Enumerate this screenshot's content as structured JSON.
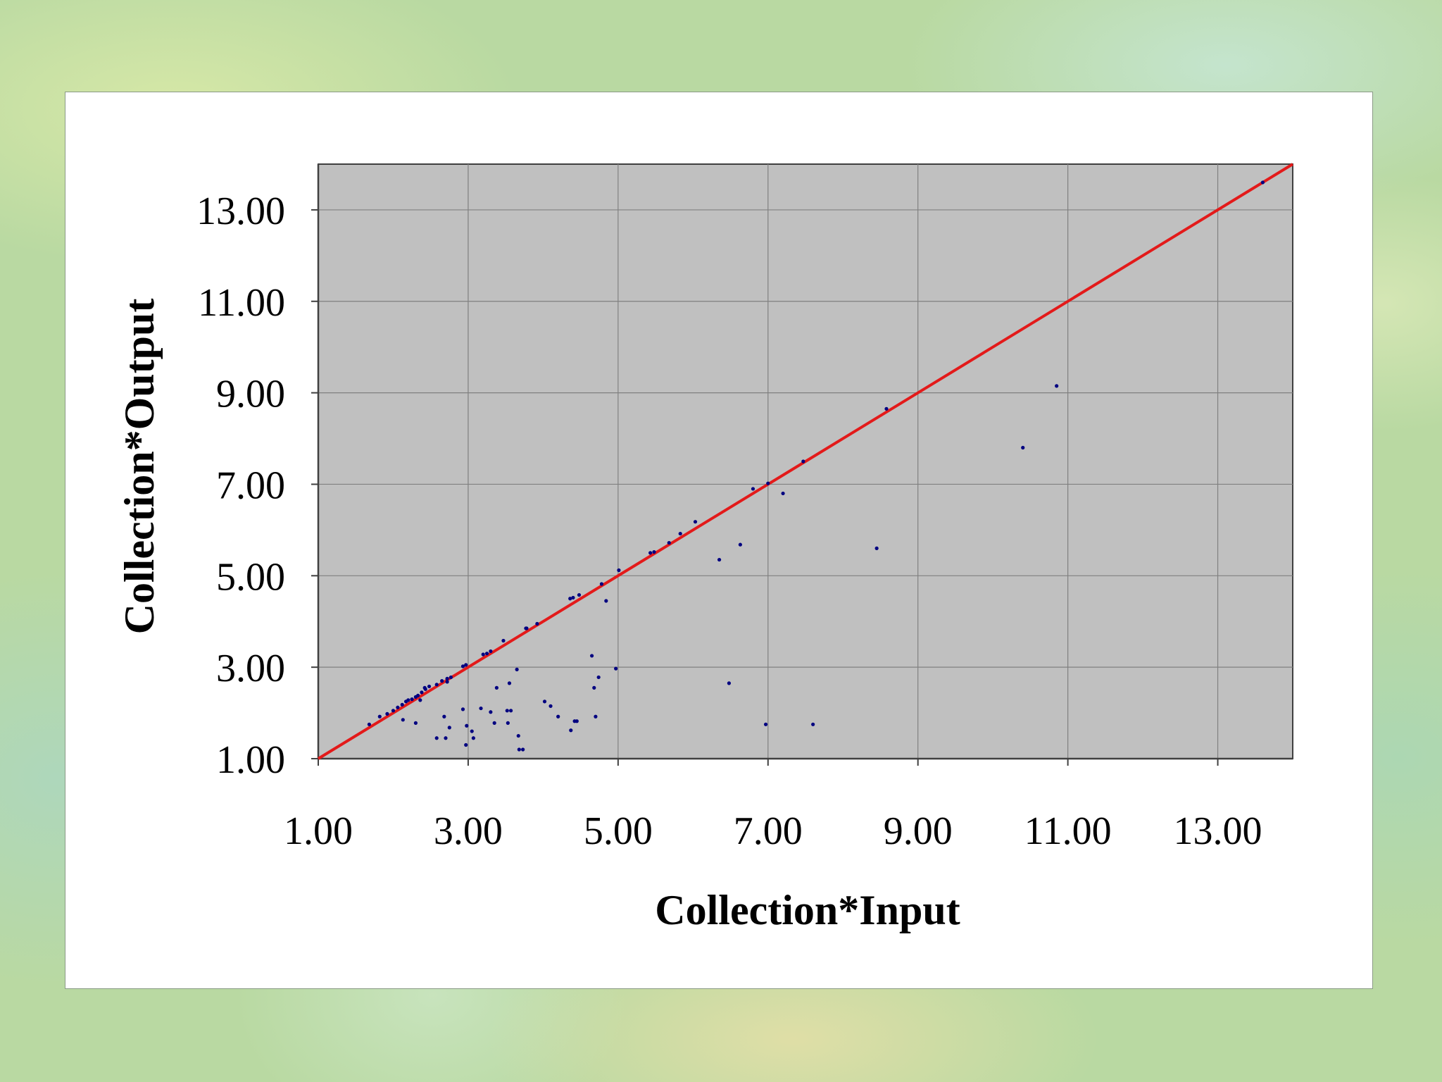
{
  "chart_data": {
    "type": "scatter",
    "title": "",
    "xlabel": "Collection*Input",
    "ylabel": "Collection*Output",
    "xlim": [
      1.0,
      14.0
    ],
    "ylim": [
      1.0,
      14.0
    ],
    "xticks": [
      "1.00",
      "3.00",
      "5.00",
      "7.00",
      "9.00",
      "11.00",
      "13.00"
    ],
    "yticks": [
      "1.00",
      "3.00",
      "5.00",
      "7.00",
      "9.00",
      "11.00",
      "13.00"
    ],
    "grid": true,
    "legend": "none",
    "colors": {
      "plot_background": "#c0c0c0",
      "grid": "#808080",
      "points": "#000080",
      "reference_line": "#e31a1a"
    },
    "reference_line": {
      "x": [
        1.0,
        14.0
      ],
      "y": [
        1.0,
        14.0
      ]
    },
    "series": [
      {
        "x": [
          1.68,
          1.82,
          1.92,
          2.0,
          2.06,
          2.12,
          2.17,
          2.2,
          2.25,
          2.3,
          2.33,
          2.38,
          2.43,
          2.48,
          2.58,
          2.65,
          2.72,
          2.77,
          2.93,
          2.97,
          3.2,
          3.25,
          3.3,
          3.47,
          3.78,
          3.92,
          4.36,
          4.4,
          4.48,
          4.78,
          5.01,
          5.43,
          5.48,
          5.68,
          5.83,
          6.03,
          6.8,
          7.0,
          7.47,
          8.58,
          13.6,
          2.13,
          2.3,
          2.36,
          2.42,
          2.58,
          2.7,
          2.75,
          2.68,
          2.72,
          2.93,
          2.98,
          2.97,
          3.05,
          3.07,
          3.17,
          3.3,
          3.35,
          3.38,
          3.52,
          3.55,
          3.57,
          3.53,
          3.65,
          3.67,
          3.68,
          3.73,
          3.77,
          4.02,
          4.1,
          4.2,
          4.37,
          4.42,
          4.45,
          4.65,
          4.68,
          4.7,
          4.74,
          4.84,
          4.97,
          6.35,
          6.48,
          6.63,
          6.97,
          7.2,
          7.6,
          8.45,
          10.4,
          10.85
        ],
        "y": [
          1.75,
          1.92,
          1.98,
          2.05,
          2.12,
          2.18,
          2.25,
          2.28,
          2.3,
          2.35,
          2.38,
          2.45,
          2.52,
          2.58,
          2.62,
          2.7,
          2.75,
          2.78,
          3.02,
          3.05,
          3.28,
          3.3,
          3.35,
          3.58,
          3.85,
          3.95,
          4.5,
          4.52,
          4.58,
          4.82,
          5.12,
          5.5,
          5.52,
          5.72,
          5.92,
          6.18,
          6.9,
          7.02,
          7.5,
          8.65,
          13.6,
          1.85,
          1.78,
          2.28,
          2.55,
          1.45,
          1.45,
          1.68,
          1.92,
          2.68,
          2.08,
          1.72,
          1.3,
          1.6,
          1.45,
          2.1,
          2.02,
          1.78,
          2.55,
          2.05,
          2.65,
          2.05,
          1.78,
          2.95,
          1.5,
          1.2,
          1.2,
          3.85,
          2.25,
          2.15,
          1.92,
          1.62,
          1.82,
          1.82,
          3.25,
          2.55,
          1.92,
          2.78,
          4.45,
          2.97,
          5.35,
          2.65,
          5.68,
          1.75,
          6.8,
          1.75,
          5.6,
          7.8,
          9.15
        ]
      }
    ]
  }
}
